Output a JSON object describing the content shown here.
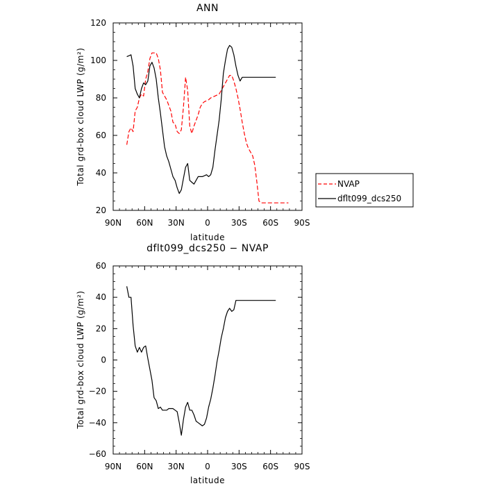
{
  "chart_data": [
    {
      "type": "line",
      "title": "ANN",
      "xlabel": "latitude",
      "ylabel_main": "Total grd-box cloud LWP",
      "ylabel_unit": "(g/m²)",
      "xlim": [
        -90,
        90
      ],
      "ylim": [
        20,
        120
      ],
      "x_ticks": [
        -90,
        -60,
        -30,
        0,
        30,
        60,
        90
      ],
      "x_tick_labels": [
        "90N",
        "60N",
        "30N",
        "0",
        "30S",
        "60S",
        "90S"
      ],
      "y_ticks": [
        20,
        40,
        60,
        80,
        100,
        120
      ],
      "y_tick_labels": [
        "20",
        "40",
        "60",
        "80",
        "100",
        "120"
      ],
      "grid": false,
      "legend_position": "right",
      "series": [
        {
          "name": "NVAP",
          "color": "#ff0000",
          "dash": "dashed",
          "x": [
            -77,
            -75,
            -73,
            -71,
            -69,
            -67,
            -65,
            -63,
            -61,
            -59,
            -57,
            -55,
            -53,
            -51,
            -49,
            -47,
            -45,
            -43,
            -41,
            -39,
            -37,
            -35,
            -33,
            -31,
            -29,
            -27,
            -25,
            -23,
            -21,
            -19,
            -17,
            -15,
            -13,
            -11,
            -9,
            -7,
            -5,
            -3,
            -1,
            1,
            3,
            5,
            7,
            9,
            11,
            13,
            15,
            17,
            19,
            21,
            23,
            25,
            27,
            29,
            31,
            33,
            35,
            37,
            39,
            41,
            43,
            45,
            47,
            49,
            51,
            53,
            55,
            57,
            59,
            61,
            63,
            65,
            67,
            69,
            71,
            73,
            75,
            77
          ],
          "values": [
            55,
            62,
            64,
            62,
            73,
            75,
            80,
            82,
            81,
            90,
            94,
            101,
            104,
            104,
            104,
            101,
            95,
            83,
            81,
            79,
            76,
            73,
            67,
            66,
            62,
            61,
            63,
            75,
            91,
            84,
            65,
            61,
            65,
            68,
            71,
            75,
            77,
            78,
            78.5,
            79,
            80,
            80.5,
            81,
            81.5,
            82,
            84,
            86,
            88,
            90,
            92,
            92,
            89,
            85,
            80,
            74,
            67,
            61,
            56,
            53,
            51,
            49,
            44,
            35,
            25,
            24,
            24,
            24,
            24,
            24,
            24,
            24,
            24,
            24,
            24,
            24,
            24,
            24,
            24
          ]
        },
        {
          "name": "dflt099_dcs250",
          "color": "#000000",
          "dash": "solid",
          "x": [
            -77,
            -75,
            -73,
            -71,
            -69,
            -67,
            -65,
            -63,
            -61,
            -59,
            -57,
            -55,
            -53,
            -51,
            -49,
            -47,
            -45,
            -43,
            -41,
            -39,
            -37,
            -35,
            -33,
            -31,
            -29,
            -27,
            -25,
            -23,
            -21,
            -19,
            -17,
            -15,
            -13,
            -11,
            -9,
            -7,
            -5,
            -3,
            -1,
            1,
            3,
            5,
            7,
            9,
            11,
            13,
            15,
            17,
            19,
            21,
            23,
            25,
            27,
            29,
            31,
            33,
            35,
            37,
            39,
            41,
            43,
            45,
            47,
            49,
            51,
            53,
            55,
            57,
            59,
            61,
            63,
            65
          ],
          "values": [
            102,
            102.5,
            103,
            97,
            85,
            82,
            80,
            85,
            88,
            87,
            89,
            97,
            99,
            96,
            90,
            80,
            72,
            63,
            54,
            49,
            46,
            42,
            38,
            36,
            32,
            29,
            31,
            37,
            43,
            45,
            36,
            35,
            34,
            36,
            38,
            38,
            38,
            38.5,
            39,
            38,
            39,
            43,
            52,
            60,
            68,
            79,
            93,
            100,
            106,
            108,
            107,
            103,
            97,
            92,
            89,
            91,
            91,
            91,
            91,
            91,
            91,
            91,
            91,
            91,
            91,
            91,
            91,
            91,
            91,
            91,
            91,
            91
          ]
        }
      ]
    },
    {
      "type": "line",
      "title": "dflt099_dcs250 − NVAP",
      "xlabel": "latitude",
      "ylabel_main": "Total grd-box cloud LWP",
      "ylabel_unit": "(g/m²)",
      "xlim": [
        -90,
        90
      ],
      "ylim": [
        -60,
        60
      ],
      "x_ticks": [
        -90,
        -60,
        -30,
        0,
        30,
        60,
        90
      ],
      "x_tick_labels": [
        "90N",
        "60N",
        "30N",
        "0",
        "30S",
        "60S",
        "90S"
      ],
      "y_ticks": [
        -60,
        -40,
        -20,
        0,
        20,
        40,
        60
      ],
      "y_tick_labels": [
        "−60",
        "−40",
        "−20",
        "0",
        "20",
        "40",
        "60"
      ],
      "grid": false,
      "series": [
        {
          "color": "#000000",
          "dash": "solid",
          "x": [
            -77,
            -75,
            -73,
            -71,
            -69,
            -67,
            -65,
            -63,
            -61,
            -59,
            -57,
            -55,
            -53,
            -51,
            -49,
            -47,
            -45,
            -43,
            -41,
            -39,
            -37,
            -35,
            -33,
            -31,
            -29,
            -27,
            -25,
            -23,
            -21,
            -19,
            -17,
            -15,
            -13,
            -11,
            -9,
            -7,
            -5,
            -3,
            -1,
            1,
            3,
            5,
            7,
            9,
            11,
            13,
            15,
            17,
            19,
            21,
            23,
            25,
            27,
            29,
            31,
            33,
            35,
            37,
            39,
            41,
            43,
            45,
            47,
            49,
            51,
            53,
            55,
            57,
            59,
            61,
            63,
            65
          ],
          "values": [
            47,
            40,
            40,
            22,
            9,
            5,
            8,
            5,
            8,
            9,
            1,
            -6,
            -13,
            -24,
            -26,
            -31,
            -30,
            -32,
            -32,
            -32,
            -31,
            -31,
            -31,
            -32,
            -33,
            -40,
            -48,
            -38,
            -30,
            -27,
            -32,
            -32,
            -35,
            -39,
            -40,
            -41,
            -42,
            -41,
            -37,
            -30,
            -25,
            -18,
            -10,
            -1,
            6,
            14,
            20,
            27,
            31,
            33,
            31,
            32,
            38,
            38,
            38,
            38,
            38,
            38,
            38,
            38,
            38,
            38,
            38,
            38,
            38,
            38,
            38,
            38,
            38,
            38,
            38,
            38
          ]
        }
      ]
    }
  ]
}
